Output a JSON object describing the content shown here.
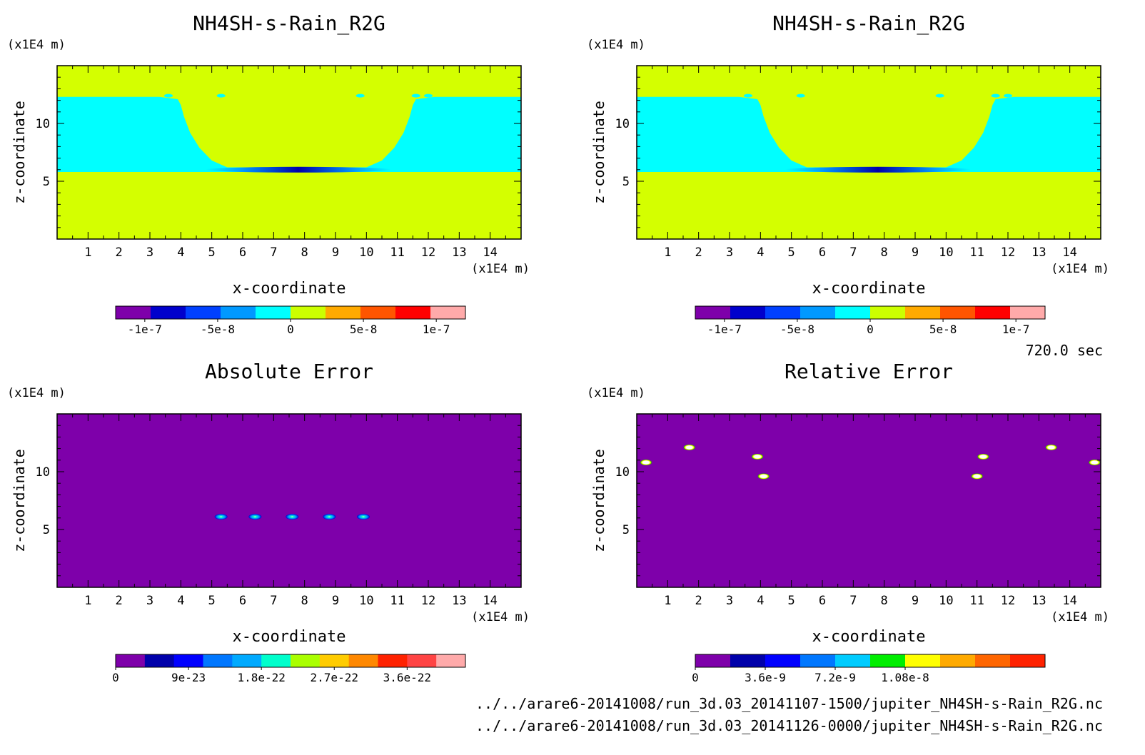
{
  "time_label": "720.0 sec",
  "file_paths": [
    "../../arare6-20141008/run_3d.03_20141107-1500/jupiter_NH4SH-s-Rain_R2G.nc",
    "../../arare6-20141008/run_3d.03_20141126-0000/jupiter_NH4SH-s-Rain_R2G.nc"
  ],
  "chart_data": [
    {
      "type": "heatmap",
      "title": "NH4SH-s-Rain_R2G",
      "xlabel": "x-coordinate",
      "ylabel": "z-coordinate",
      "x_unit": "(x1E4 m)",
      "y_unit": "(x1E4 m)",
      "xlim": [
        0,
        15
      ],
      "ylim": [
        0,
        15
      ],
      "xticks": [
        1,
        2,
        3,
        4,
        5,
        6,
        7,
        8,
        9,
        10,
        11,
        12,
        13,
        14
      ],
      "yticks": [
        5,
        10
      ],
      "background": "#d4ff00",
      "field": "rain_layer",
      "colorbar": {
        "colors": [
          "#7e00aa",
          "#0000cc",
          "#0040ff",
          "#0099ff",
          "#00ffff",
          "#ccff00",
          "#ffaa00",
          "#ff5500",
          "#ff0000",
          "#ffaaaa"
        ],
        "range": [
          -1.2e-07,
          1.2e-07
        ],
        "ticks": [
          {
            "v": -1e-07,
            "label": "-1e-7"
          },
          {
            "v": -5e-08,
            "label": "-5e-8"
          },
          {
            "v": 0,
            "label": "0"
          },
          {
            "v": 5e-08,
            "label": "5e-8"
          },
          {
            "v": 1e-07,
            "label": "1e-7"
          }
        ]
      }
    },
    {
      "type": "heatmap",
      "title": "NH4SH-s-Rain_R2G",
      "xlabel": "x-coordinate",
      "ylabel": "z-coordinate",
      "x_unit": "(x1E4 m)",
      "y_unit": "(x1E4 m)",
      "xlim": [
        0,
        15
      ],
      "ylim": [
        0,
        15
      ],
      "xticks": [
        1,
        2,
        3,
        4,
        5,
        6,
        7,
        8,
        9,
        10,
        11,
        12,
        13,
        14
      ],
      "yticks": [
        5,
        10
      ],
      "background": "#d4ff00",
      "field": "rain_layer",
      "colorbar": {
        "colors": [
          "#7e00aa",
          "#0000cc",
          "#0040ff",
          "#0099ff",
          "#00ffff",
          "#ccff00",
          "#ffaa00",
          "#ff5500",
          "#ff0000",
          "#ffaaaa"
        ],
        "range": [
          -1.2e-07,
          1.2e-07
        ],
        "ticks": [
          {
            "v": -1e-07,
            "label": "-1e-7"
          },
          {
            "v": -5e-08,
            "label": "-5e-8"
          },
          {
            "v": 0,
            "label": "0"
          },
          {
            "v": 5e-08,
            "label": "5e-8"
          },
          {
            "v": 1e-07,
            "label": "1e-7"
          }
        ]
      }
    },
    {
      "type": "heatmap",
      "title": "Absolute Error",
      "xlabel": "x-coordinate",
      "ylabel": "z-coordinate",
      "x_unit": "(x1E4 m)",
      "y_unit": "(x1E4 m)",
      "xlim": [
        0,
        15
      ],
      "ylim": [
        0,
        15
      ],
      "xticks": [
        1,
        2,
        3,
        4,
        5,
        6,
        7,
        8,
        9,
        10,
        11,
        12,
        13,
        14
      ],
      "yticks": [
        5,
        10
      ],
      "background": "#7e00aa",
      "field": "spots",
      "spots": [
        [
          5.3,
          6.1
        ],
        [
          6.4,
          6.1
        ],
        [
          7.6,
          6.1
        ],
        [
          8.8,
          6.1
        ],
        [
          9.9,
          6.1
        ]
      ],
      "colorbar": {
        "colors": [
          "#7e00aa",
          "#0000aa",
          "#0000ff",
          "#0077ff",
          "#00aaff",
          "#00ffcc",
          "#aaff00",
          "#ffcc00",
          "#ff8800",
          "#ff2200",
          "#ff4444",
          "#ffaaaa"
        ],
        "range": [
          0,
          4.32e-22
        ],
        "ticks": [
          {
            "v": 0,
            "label": "0"
          },
          {
            "v": 9e-23,
            "label": "9e-23"
          },
          {
            "v": 1.8e-22,
            "label": "1.8e-22"
          },
          {
            "v": 2.7e-22,
            "label": "2.7e-22"
          },
          {
            "v": 3.6e-22,
            "label": "3.6e-22"
          }
        ]
      }
    },
    {
      "type": "heatmap",
      "title": "Relative Error",
      "xlabel": "x-coordinate",
      "ylabel": "z-coordinate",
      "x_unit": "(x1E4 m)",
      "y_unit": "(x1E4 m)",
      "xlim": [
        0,
        15
      ],
      "ylim": [
        0,
        15
      ],
      "xticks": [
        1,
        2,
        3,
        4,
        5,
        6,
        7,
        8,
        9,
        10,
        11,
        12,
        13,
        14
      ],
      "yticks": [
        5,
        10
      ],
      "background": "#7e00aa",
      "field": "spots",
      "spots": [
        [
          0.3,
          10.8
        ],
        [
          1.7,
          12.1
        ],
        [
          3.9,
          11.3
        ],
        [
          4.1,
          9.6
        ],
        [
          11.0,
          9.6
        ],
        [
          11.2,
          11.3
        ],
        [
          13.4,
          12.1
        ],
        [
          14.8,
          10.8
        ]
      ],
      "colorbar": {
        "colors": [
          "#7e00aa",
          "#0000aa",
          "#0000ff",
          "#0077ff",
          "#00ccff",
          "#00ee00",
          "#ffff00",
          "#ffaa00",
          "#ff6600",
          "#ff2200"
        ],
        "range": [
          0,
          1.8e-08
        ],
        "ticks": [
          {
            "v": 0,
            "label": "0"
          },
          {
            "v": 3.6e-09,
            "label": "3.6e-9"
          },
          {
            "v": 7.2e-09,
            "label": "7.2e-9"
          },
          {
            "v": 1.08e-08,
            "label": "1.08e-8"
          }
        ]
      }
    }
  ]
}
